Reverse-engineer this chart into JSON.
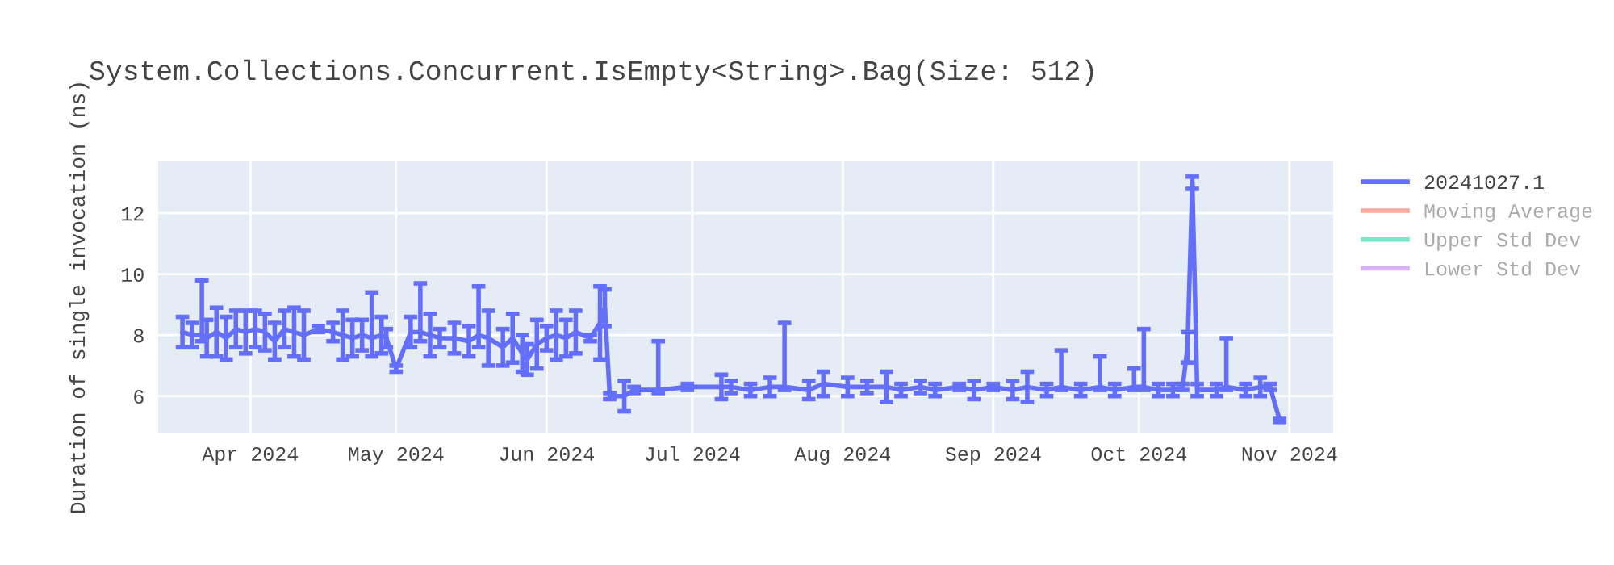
{
  "chart_data": {
    "type": "line",
    "title": "System.Collections.Concurrent.IsEmpty<String>.Bag(Size: 512)",
    "ylabel": "Duration of single invocation (ns)",
    "x": [
      "2024-03-18",
      "2024-03-20",
      "2024-03-22",
      "2024-03-23",
      "2024-03-25",
      "2024-03-27",
      "2024-03-29",
      "2024-03-31",
      "2024-04-02",
      "2024-04-04",
      "2024-04-06",
      "2024-04-08",
      "2024-04-10",
      "2024-04-12",
      "2024-04-15",
      "2024-04-18",
      "2024-04-20",
      "2024-04-22",
      "2024-04-24",
      "2024-04-26",
      "2024-04-28",
      "2024-04-29",
      "2024-05-01",
      "2024-05-04",
      "2024-05-06",
      "2024-05-08",
      "2024-05-10",
      "2024-05-13",
      "2024-05-16",
      "2024-05-18",
      "2024-05-20",
      "2024-05-23",
      "2024-05-25",
      "2024-05-27",
      "2024-05-28",
      "2024-05-30",
      "2024-06-01",
      "2024-06-03",
      "2024-06-05",
      "2024-06-07",
      "2024-06-10",
      "2024-06-12",
      "2024-06-13",
      "2024-06-14",
      "2024-06-17",
      "2024-06-19",
      "2024-06-24",
      "2024-06-30",
      "2024-07-07",
      "2024-07-09",
      "2024-07-13",
      "2024-07-17",
      "2024-07-20",
      "2024-07-25",
      "2024-07-28",
      "2024-08-02",
      "2024-08-06",
      "2024-08-10",
      "2024-08-13",
      "2024-08-17",
      "2024-08-20",
      "2024-08-25",
      "2024-08-28",
      "2024-09-01",
      "2024-09-05",
      "2024-09-08",
      "2024-09-12",
      "2024-09-15",
      "2024-09-19",
      "2024-09-23",
      "2024-09-26",
      "2024-09-30",
      "2024-10-02",
      "2024-10-05",
      "2024-10-08",
      "2024-10-10",
      "2024-10-11",
      "2024-10-12",
      "2024-10-13",
      "2024-10-17",
      "2024-10-19",
      "2024-10-23",
      "2024-10-26",
      "2024-10-28",
      "2024-10-30"
    ],
    "series": [
      {
        "name": "20241027.1",
        "color": "#636efa",
        "values": [
          8.1,
          8.0,
          8.0,
          7.9,
          8.1,
          7.9,
          8.2,
          8.1,
          8.2,
          8.1,
          7.8,
          8.2,
          8.1,
          8.0,
          8.2,
          8.1,
          8.0,
          7.9,
          8.0,
          7.9,
          8.0,
          7.9,
          6.9,
          8.1,
          8.1,
          8.0,
          7.9,
          7.9,
          7.8,
          8.0,
          7.9,
          7.6,
          7.9,
          7.4,
          7.2,
          7.7,
          7.9,
          8.0,
          7.9,
          8.1,
          7.9,
          8.4,
          8.9,
          6.0,
          6.0,
          6.2,
          6.2,
          6.3,
          6.3,
          6.3,
          6.2,
          6.3,
          6.3,
          6.2,
          6.4,
          6.3,
          6.3,
          6.3,
          6.2,
          6.3,
          6.2,
          6.3,
          6.2,
          6.3,
          6.2,
          6.3,
          6.2,
          6.3,
          6.2,
          6.3,
          6.2,
          6.3,
          6.3,
          6.2,
          6.2,
          6.3,
          7.6,
          13.0,
          6.2,
          6.2,
          6.3,
          6.2,
          6.3,
          6.3,
          5.2
        ],
        "errors": [
          0.5,
          0.4,
          [
            7.8,
            9.8
          ],
          0.6,
          0.8,
          0.7,
          0.6,
          0.7,
          0.6,
          0.6,
          0.6,
          0.6,
          0.8,
          0.8,
          0.1,
          0.3,
          0.8,
          0.6,
          0.5,
          [
            7.3,
            9.4
          ],
          0.6,
          0.3,
          0.1,
          0.5,
          [
            7.8,
            9.7
          ],
          0.7,
          0.3,
          0.5,
          0.5,
          [
            7.6,
            9.6
          ],
          0.9,
          0.6,
          0.8,
          0.6,
          0.5,
          0.8,
          0.4,
          0.8,
          0.6,
          0.7,
          0.1,
          1.2,
          0.6,
          0.1,
          0.5,
          0.1,
          [
            6.1,
            7.8
          ],
          0.1,
          0.4,
          0.2,
          0.2,
          0.3,
          [
            6.2,
            8.4
          ],
          0.3,
          0.4,
          0.3,
          0.2,
          0.5,
          0.2,
          0.2,
          0.2,
          0.1,
          0.3,
          0.1,
          0.3,
          0.5,
          0.2,
          [
            6.2,
            7.5
          ],
          0.2,
          [
            6.2,
            7.3
          ],
          0.2,
          [
            6.2,
            6.9
          ],
          [
            6.2,
            8.2
          ],
          0.2,
          0.2,
          0.1,
          0.5,
          0.2,
          0.2,
          0.2,
          [
            6.2,
            7.9
          ],
          0.2,
          0.3,
          0.1,
          0.05
        ]
      },
      {
        "name": "Moving Average",
        "color": "#ef553b",
        "values": [
          null,
          null,
          null,
          null,
          null,
          null,
          null,
          null,
          null,
          null,
          null,
          null,
          null,
          null,
          null,
          null,
          null,
          null,
          null,
          null,
          null,
          null,
          null,
          null,
          null,
          null,
          null,
          null,
          null,
          null,
          null,
          null,
          null,
          null,
          null,
          null,
          null,
          null,
          null,
          null,
          null,
          null,
          null,
          null,
          null,
          null,
          null,
          null,
          null,
          null,
          null,
          null,
          null,
          null,
          null,
          null,
          null,
          null,
          null,
          null,
          null,
          null,
          null,
          null,
          null,
          null,
          null,
          null,
          null,
          null,
          null,
          null,
          null,
          null,
          null,
          null,
          null,
          null,
          null,
          null,
          null,
          null,
          null,
          null,
          null
        ]
      },
      {
        "name": "Upper Std Dev",
        "color": "#00cc96",
        "values": [
          null,
          null,
          null,
          null,
          null,
          null,
          null,
          null,
          null,
          null,
          null,
          null,
          null,
          null,
          null,
          null,
          null,
          null,
          null,
          null,
          null,
          null,
          null,
          null,
          null,
          null,
          null,
          null,
          null,
          null,
          null,
          null,
          null,
          null,
          null,
          null,
          null,
          null,
          null,
          null,
          null,
          null,
          null,
          null,
          null,
          null,
          null,
          null,
          null,
          null,
          null,
          null,
          null,
          null,
          null,
          null,
          null,
          null,
          null,
          null,
          null,
          null,
          null,
          null,
          null,
          null,
          null,
          null,
          null,
          null,
          null,
          null,
          null,
          null,
          null,
          null,
          null,
          null,
          null,
          null,
          null,
          null,
          null,
          null,
          null
        ]
      },
      {
        "name": "Lower Std Dev",
        "color": "#ab63fa",
        "values": [
          null,
          null,
          null,
          null,
          null,
          null,
          null,
          null,
          null,
          null,
          null,
          null,
          null,
          null,
          null,
          null,
          null,
          null,
          null,
          null,
          null,
          null,
          null,
          null,
          null,
          null,
          null,
          null,
          null,
          null,
          null,
          null,
          null,
          null,
          null,
          null,
          null,
          null,
          null,
          null,
          null,
          null,
          null,
          null,
          null,
          null,
          null,
          null,
          null,
          null,
          null,
          null,
          null,
          null,
          null,
          null,
          null,
          null,
          null,
          null,
          null,
          null,
          null,
          null,
          null,
          null,
          null,
          null,
          null,
          null,
          null,
          null,
          null,
          null,
          null,
          null,
          null,
          null,
          null,
          null,
          null,
          null,
          null,
          null,
          null
        ]
      }
    ],
    "xlim": [
      "2024-03-13",
      "2024-11-10"
    ],
    "xticks": [
      {
        "value": "2024-04-01",
        "label": "Apr 2024"
      },
      {
        "value": "2024-05-01",
        "label": "May 2024"
      },
      {
        "value": "2024-06-01",
        "label": "Jun 2024"
      },
      {
        "value": "2024-07-01",
        "label": "Jul 2024"
      },
      {
        "value": "2024-08-01",
        "label": "Aug 2024"
      },
      {
        "value": "2024-09-01",
        "label": "Sep 2024"
      },
      {
        "value": "2024-10-01",
        "label": "Oct 2024"
      },
      {
        "value": "2024-11-01",
        "label": "Nov 2024"
      }
    ],
    "ylim": [
      4.8,
      13.7
    ],
    "yticks": [
      6,
      8,
      10,
      12
    ],
    "grid": true,
    "legend": "top right"
  }
}
